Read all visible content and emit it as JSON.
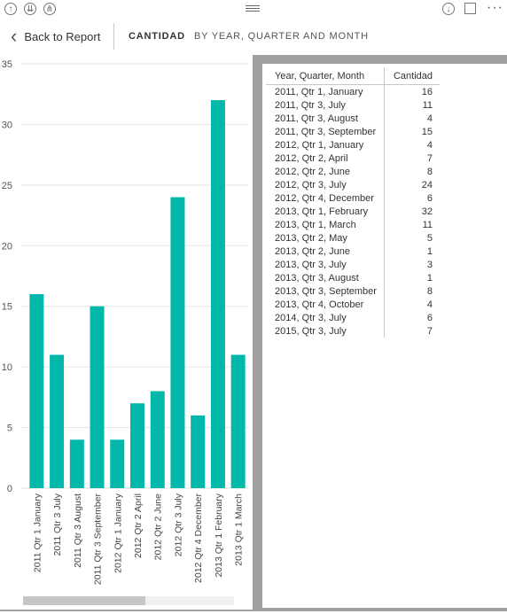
{
  "toolbar": {
    "up_icon": "arrow-up-circle-icon",
    "drill_icon": "double-arrow-down-circle-icon",
    "expand_icon": "expand-hierarchy-circle-icon",
    "grip_icon": "drag-grip-icon",
    "drill_down_icon": "arrow-down-circle-icon",
    "popout_icon": "focus-mode-icon",
    "more_label": "···"
  },
  "header": {
    "back_label": "Back to Report",
    "title": "CANTIDAD",
    "subtitle": "BY YEAR, QUARTER AND MONTH"
  },
  "colors": {
    "bar": "#01B8AA",
    "panel_border": "#a0a0a0"
  },
  "chart_data": {
    "type": "bar",
    "categories": [
      "2011 Qtr 1 January",
      "2011 Qtr 3 July",
      "2011 Qtr 3 August",
      "2011 Qtr 3 September",
      "2012 Qtr 1 January",
      "2012 Qtr 2 April",
      "2012 Qtr 2 June",
      "2012 Qtr 3 July",
      "2012 Qtr 4 December",
      "2013 Qtr 1 February",
      "2013 Qtr 1 March"
    ],
    "values": [
      16,
      11,
      4,
      15,
      4,
      7,
      8,
      24,
      6,
      32,
      11
    ],
    "y_ticks": [
      0,
      5,
      10,
      15,
      20,
      25,
      30,
      35
    ],
    "ylim": [
      0,
      35
    ],
    "grid": true,
    "color": "#01B8AA"
  },
  "table": {
    "columns": [
      "Year, Quarter, Month",
      "Cantidad"
    ],
    "rows": [
      [
        "2011, Qtr 1, January",
        "16"
      ],
      [
        "2011, Qtr 3, July",
        "11"
      ],
      [
        "2011, Qtr 3, August",
        "4"
      ],
      [
        "2011, Qtr 3, September",
        "15"
      ],
      [
        "2012, Qtr 1, January",
        "4"
      ],
      [
        "2012, Qtr 2, April",
        "7"
      ],
      [
        "2012, Qtr 2, June",
        "8"
      ],
      [
        "2012, Qtr 3, July",
        "24"
      ],
      [
        "2012, Qtr 4, December",
        "6"
      ],
      [
        "2013, Qtr 1, February",
        "32"
      ],
      [
        "2013, Qtr 1, March",
        "11"
      ],
      [
        "2013, Qtr 2, May",
        "5"
      ],
      [
        "2013, Qtr 2, June",
        "1"
      ],
      [
        "2013, Qtr 3, July",
        "3"
      ],
      [
        "2013, Qtr 3, August",
        "1"
      ],
      [
        "2013, Qtr 3, September",
        "8"
      ],
      [
        "2013, Qtr 4, October",
        "4"
      ],
      [
        "2014, Qtr 3, July",
        "6"
      ],
      [
        "2015, Qtr 3, July",
        "7"
      ]
    ]
  }
}
